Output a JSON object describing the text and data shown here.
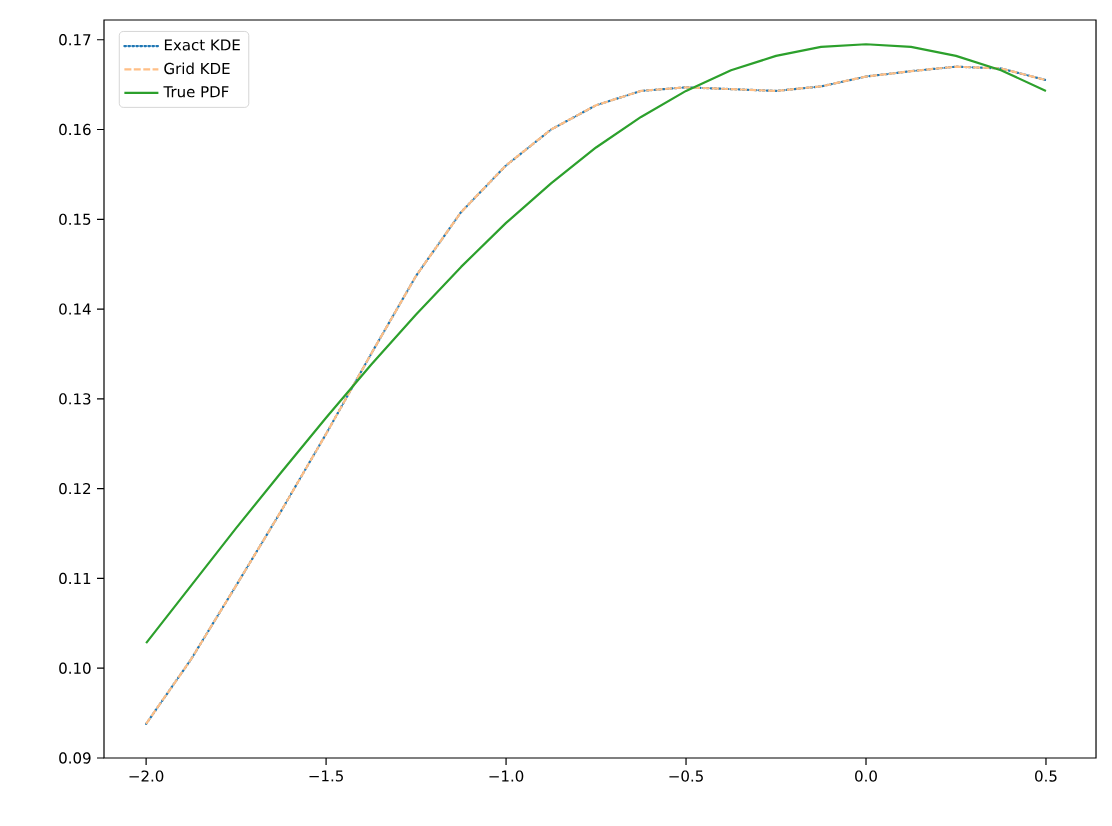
{
  "chart_data": {
    "type": "line",
    "xlim": [
      -2.117,
      0.639
    ],
    "ylim": [
      0.09,
      0.1722
    ],
    "xticks": [
      {
        "value": -2.0,
        "label": "−2.0"
      },
      {
        "value": -1.5,
        "label": "−1.5"
      },
      {
        "value": -1.0,
        "label": "−1.0"
      },
      {
        "value": -0.5,
        "label": "−0.5"
      },
      {
        "value": 0.0,
        "label": "0.0"
      },
      {
        "value": 0.5,
        "label": "0.5"
      }
    ],
    "yticks": [
      {
        "value": 0.09,
        "label": "0.09"
      },
      {
        "value": 0.1,
        "label": "0.10"
      },
      {
        "value": 0.11,
        "label": "0.11"
      },
      {
        "value": 0.12,
        "label": "0.12"
      },
      {
        "value": 0.13,
        "label": "0.13"
      },
      {
        "value": 0.14,
        "label": "0.14"
      },
      {
        "value": 0.15,
        "label": "0.15"
      },
      {
        "value": 0.16,
        "label": "0.16"
      },
      {
        "value": 0.17,
        "label": "0.17"
      }
    ],
    "x": [
      -2,
      -1.875,
      -1.75,
      -1.625,
      -1.5,
      -1.375,
      -1.25,
      -1.125,
      -1,
      -0.875,
      -0.75,
      -0.625,
      -0.5,
      -0.375,
      -0.25,
      -0.125,
      0,
      0.125,
      0.25,
      0.375,
      0.5
    ],
    "legend": "top left",
    "grid": false,
    "marker": "none",
    "series": [
      {
        "name": "Exact KDE",
        "color": "#1f77b4",
        "line_style": "dotted",
        "values": [
          0.0938,
          0.101,
          0.1092,
          0.1175,
          0.1261,
          0.135,
          0.1437,
          0.1508,
          0.156,
          0.16,
          0.1627,
          0.1643,
          0.1647,
          0.1645,
          0.1643,
          0.1648,
          0.1659,
          0.1665,
          0.167,
          0.1668,
          0.1655
        ]
      },
      {
        "name": "Grid KDE",
        "color": "#ffbf86",
        "line_style": "dashed",
        "values": [
          0.0938,
          0.101,
          0.1092,
          0.1175,
          0.1261,
          0.135,
          0.1437,
          0.1508,
          0.156,
          0.16,
          0.1627,
          0.1643,
          0.1647,
          0.1645,
          0.1643,
          0.1648,
          0.1659,
          0.1665,
          0.167,
          0.1668,
          0.1655
        ]
      },
      {
        "name": "True PDF",
        "color": "#2ca02c",
        "line_style": "solid",
        "values": [
          0.1028,
          0.1092,
          0.1156,
          0.1218,
          0.1279,
          0.1338,
          0.1394,
          0.1447,
          0.1496,
          0.154,
          0.158,
          0.1614,
          0.1643,
          0.1666,
          0.1682,
          0.1692,
          0.1695,
          0.1692,
          0.1682,
          0.1666,
          0.1643
        ]
      }
    ]
  }
}
